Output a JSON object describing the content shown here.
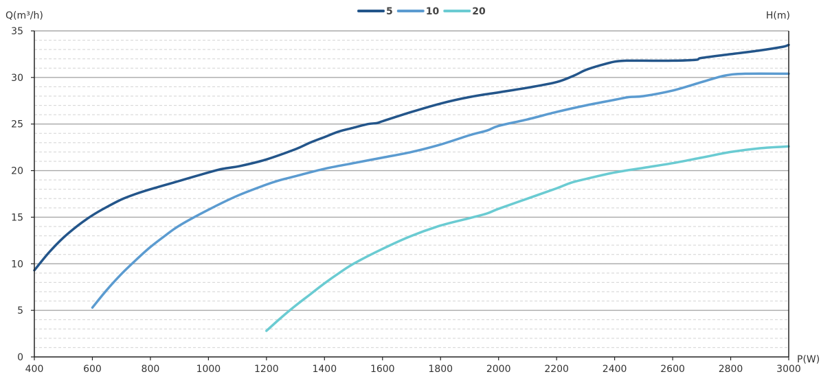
{
  "chart_data": {
    "type": "line",
    "title": "",
    "xlabel": "P(W)",
    "ylabel": "Q(m³/h)",
    "y2label": "H(m)",
    "xlim": [
      400,
      3000
    ],
    "ylim": [
      0,
      35
    ],
    "xticks": [
      400,
      600,
      800,
      1000,
      1200,
      1400,
      1600,
      1800,
      2000,
      2200,
      2400,
      2600,
      2800,
      3000
    ],
    "yticks": [
      0,
      5,
      10,
      15,
      20,
      25,
      30,
      35
    ],
    "legend_position": "top-center",
    "grid": "horizontal",
    "series": [
      {
        "name": "5",
        "color": "#23558a",
        "x": [
          400,
          450,
          500,
          550,
          600,
          650,
          700,
          750,
          800,
          900,
          1000,
          1050,
          1110,
          1200,
          1300,
          1350,
          1400,
          1450,
          1500,
          1550,
          1580,
          1600,
          1700,
          1800,
          1900,
          2000,
          2100,
          2200,
          2260,
          2300,
          2350,
          2400,
          2440,
          2500,
          2600,
          2680,
          2700,
          2800,
          2900,
          2980,
          3000
        ],
        "y": [
          9.3,
          11.2,
          12.8,
          14.1,
          15.2,
          16.1,
          16.9,
          17.5,
          18.0,
          18.9,
          19.8,
          20.2,
          20.5,
          21.2,
          22.3,
          23.0,
          23.6,
          24.2,
          24.6,
          25.0,
          25.1,
          25.3,
          26.3,
          27.2,
          27.9,
          28.4,
          28.9,
          29.5,
          30.2,
          30.8,
          31.3,
          31.7,
          31.8,
          31.8,
          31.8,
          31.9,
          32.1,
          32.5,
          32.9,
          33.3,
          33.5
        ]
      },
      {
        "name": "10",
        "color": "#5b9bd0",
        "x": [
          600,
          650,
          700,
          750,
          800,
          850,
          900,
          1000,
          1100,
          1200,
          1250,
          1300,
          1400,
          1500,
          1600,
          1700,
          1800,
          1900,
          1960,
          2000,
          2100,
          2200,
          2300,
          2400,
          2450,
          2500,
          2600,
          2700,
          2780,
          2850,
          3000
        ],
        "y": [
          5.3,
          7.2,
          8.9,
          10.4,
          11.8,
          13.0,
          14.1,
          15.8,
          17.3,
          18.5,
          19.0,
          19.4,
          20.2,
          20.8,
          21.4,
          22.0,
          22.8,
          23.8,
          24.3,
          24.8,
          25.5,
          26.3,
          27.0,
          27.6,
          27.9,
          28.0,
          28.6,
          29.5,
          30.2,
          30.4,
          30.4
        ]
      },
      {
        "name": "20",
        "color": "#6acbd2",
        "x": [
          1200,
          1250,
          1300,
          1350,
          1400,
          1450,
          1500,
          1600,
          1700,
          1800,
          1900,
          1960,
          2000,
          2100,
          2200,
          2250,
          2300,
          2400,
          2500,
          2600,
          2700,
          2800,
          2900,
          3000
        ],
        "y": [
          2.8,
          4.2,
          5.5,
          6.7,
          7.9,
          9.0,
          10.0,
          11.6,
          13.0,
          14.1,
          14.9,
          15.4,
          15.9,
          17.0,
          18.1,
          18.7,
          19.1,
          19.8,
          20.3,
          20.8,
          21.4,
          22.0,
          22.4,
          22.6
        ]
      }
    ]
  }
}
